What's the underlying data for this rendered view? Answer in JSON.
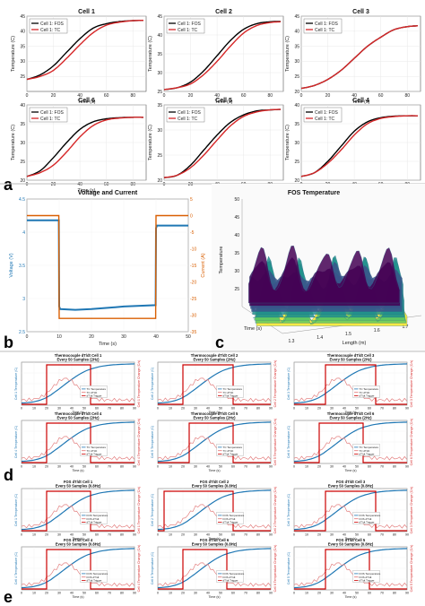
{
  "panel_letters": [
    "a",
    "b",
    "c",
    "d",
    "e"
  ],
  "chart_data": [
    {
      "panel": "a",
      "type": "line",
      "grid": true,
      "legend_position": "top-left",
      "xlabel": "Time (s)",
      "ylabel": "Temperature (C)",
      "xlim": [
        0,
        90
      ],
      "xticks": [
        0,
        20,
        40,
        60,
        80
      ],
      "subplots": [
        {
          "title": "Cell 1",
          "ylim": [
            20,
            45
          ],
          "yticks": [
            25,
            30,
            35,
            40,
            45
          ],
          "series": [
            {
              "name": "Cell 1: FOS",
              "color": "#000000",
              "x": [
                0,
                10,
                20,
                30,
                40,
                50,
                60,
                70,
                80,
                88
              ],
              "y": [
                24,
                25.5,
                28.5,
                33,
                37.5,
                41,
                42.5,
                43.2,
                43.5,
                43.6
              ]
            },
            {
              "name": "Cell 1: TC",
              "color": "#d62728",
              "x": [
                0,
                10,
                20,
                30,
                40,
                50,
                60,
                70,
                80,
                88
              ],
              "y": [
                24,
                25,
                27,
                31,
                35.5,
                39.5,
                42,
                43,
                43.5,
                43.6
              ]
            }
          ]
        },
        {
          "title": "Cell 2",
          "ylim": [
            25,
            45
          ],
          "yticks": [
            25,
            30,
            35,
            40,
            45
          ],
          "series": [
            {
              "name": "Cell 1: FOS",
              "color": "#000000",
              "x": [
                0,
                10,
                20,
                30,
                40,
                50,
                60,
                70,
                80,
                88
              ],
              "y": [
                25.5,
                26,
                27.5,
                30.5,
                34.5,
                38.5,
                41.5,
                43,
                43.5,
                43.6
              ]
            },
            {
              "name": "Cell 1: TC",
              "color": "#d62728",
              "x": [
                0,
                10,
                20,
                30,
                40,
                50,
                60,
                70,
                80,
                88
              ],
              "y": [
                25.5,
                26,
                27,
                29.5,
                33,
                37,
                40.5,
                42.5,
                43.3,
                43.5
              ]
            }
          ]
        },
        {
          "title": "Cell 3",
          "ylim": [
            20,
            45
          ],
          "yticks": [
            20,
            25,
            30,
            35,
            40,
            45
          ],
          "series": [
            {
              "name": "Cell 1: FOS",
              "color": "#000000",
              "x": [
                0,
                10,
                20,
                30,
                40,
                50,
                60,
                70,
                80,
                88
              ],
              "y": [
                21,
                22,
                24,
                27,
                31,
                35,
                38,
                40.5,
                41.5,
                41.8
              ]
            },
            {
              "name": "Cell 1: TC",
              "color": "#d62728",
              "x": [
                0,
                10,
                20,
                30,
                40,
                50,
                60,
                70,
                80,
                88
              ],
              "y": [
                21,
                22,
                24,
                27,
                31,
                35,
                38,
                40.5,
                41.5,
                41.8
              ]
            }
          ]
        },
        {
          "title": "Cell 6",
          "ylim": [
            20,
            40
          ],
          "yticks": [
            20,
            25,
            30,
            35,
            40
          ],
          "series": [
            {
              "name": "Cell 1: FOS",
              "color": "#000000",
              "x": [
                0,
                10,
                20,
                30,
                40,
                50,
                60,
                70,
                80,
                88
              ],
              "y": [
                21,
                22.5,
                26,
                30,
                33.5,
                35.5,
                36.3,
                36.6,
                36.7,
                36.7
              ]
            },
            {
              "name": "Cell 1: TC",
              "color": "#d62728",
              "x": [
                0,
                10,
                20,
                30,
                40,
                50,
                60,
                70,
                80,
                88
              ],
              "y": [
                21,
                22,
                24,
                27.5,
                31.5,
                34.5,
                36,
                36.5,
                36.7,
                36.7
              ]
            }
          ]
        },
        {
          "title": "Cell 5",
          "ylim": [
            20,
            35
          ],
          "yticks": [
            20,
            25,
            30,
            35
          ],
          "series": [
            {
              "name": "Cell 1: FOS",
              "color": "#000000",
              "x": [
                0,
                10,
                20,
                30,
                40,
                50,
                60,
                70,
                80,
                88
              ],
              "y": [
                20.5,
                21,
                23,
                26,
                29,
                31.5,
                33,
                33.8,
                34,
                34.1
              ]
            },
            {
              "name": "Cell 1: TC",
              "color": "#d62728",
              "x": [
                0,
                10,
                20,
                30,
                40,
                50,
                60,
                70,
                80,
                88
              ],
              "y": [
                20.5,
                21,
                22.5,
                25,
                28,
                30.8,
                32.7,
                33.6,
                34,
                34.1
              ]
            }
          ]
        },
        {
          "title": "Cell 4",
          "ylim": [
            20,
            40
          ],
          "yticks": [
            20,
            25,
            30,
            35,
            40
          ],
          "series": [
            {
              "name": "Cell 1: FOS",
              "color": "#000000",
              "x": [
                0,
                10,
                20,
                30,
                40,
                50,
                60,
                70,
                80,
                88
              ],
              "y": [
                21,
                22,
                25,
                29,
                33,
                35.5,
                36.6,
                37,
                37.1,
                37.1
              ]
            },
            {
              "name": "Cell 1: TC",
              "color": "#d62728",
              "x": [
                0,
                10,
                20,
                30,
                40,
                50,
                60,
                70,
                80,
                88
              ],
              "y": [
                21,
                22,
                24.5,
                28,
                32,
                35,
                36.4,
                36.9,
                37.1,
                37.1
              ]
            }
          ]
        }
      ]
    },
    {
      "panel": "b",
      "type": "line",
      "title": "Voltage and Current",
      "xlabel": "Time (s)",
      "ylabel_left": "Voltage (V)",
      "ylabel_right": "Current (A)",
      "xlim": [
        0,
        50
      ],
      "xticks": [
        0,
        10,
        20,
        30,
        40,
        50
      ],
      "ylim_left": [
        2.5,
        4.5
      ],
      "yticks_left": [
        2.5,
        3,
        3.5,
        4,
        4.5
      ],
      "ylim_right": [
        -35,
        5
      ],
      "yticks_right": [
        -35,
        -30,
        -25,
        -20,
        -15,
        -10,
        -5,
        0,
        5
      ],
      "series": [
        {
          "axis": "left",
          "color": "#1f77b4",
          "x": [
            0,
            9.9,
            10,
            10.3,
            15,
            20,
            25,
            30,
            35,
            39.9,
            40,
            40.3,
            45,
            50
          ],
          "y": [
            4.18,
            4.18,
            2.88,
            2.84,
            2.83,
            2.84,
            2.86,
            2.88,
            2.89,
            2.9,
            4.06,
            4.1,
            4.1,
            4.1
          ]
        },
        {
          "axis": "right",
          "color": "#d95f02",
          "x": [
            0,
            9.9,
            10,
            39.9,
            40,
            50
          ],
          "y": [
            0,
            0,
            -31,
            -31,
            0,
            0
          ]
        }
      ]
    },
    {
      "panel": "c",
      "type": "heatmap",
      "title": "FOS Temperature",
      "xlabel": "Length (m)",
      "ylabel": "Time (s)",
      "zlabel": "Temperature",
      "xticks": [
        1.3,
        1.4,
        1.5,
        1.6,
        1.7
      ],
      "zticks": [
        25,
        30,
        35,
        40,
        45,
        50
      ],
      "zlim": [
        20,
        50
      ],
      "peak_lengths_m": [
        1.3,
        1.4,
        1.52,
        1.62,
        1.72
      ]
    },
    {
      "panel": "d",
      "type": "line",
      "xlabel": "Time (s)",
      "xticks": [
        0,
        10,
        20,
        30,
        40,
        50,
        60,
        70,
        80,
        90
      ],
      "legend": [
        "TC Temperature",
        "TC dT/dt",
        "dT/dt Trigger"
      ],
      "subplots": [
        {
          "title": "Thermocouple dT/dt Cell 1",
          "subtitle": "Every 50 Samples (2Hz)",
          "ylabel": "Cell 1 Temperature (C)",
          "ylabel_right": "Cell 1 Temperature Change (C/s)",
          "trigger": [
            20,
            55
          ]
        },
        {
          "title": "Thermocouple dT/dt Cell 2",
          "subtitle": "Every 50 Samples (2Hz)",
          "ylabel": "Cell 2 Temperature (C)",
          "ylabel_right": "Cell 2 Temperature Change (C/s)",
          "trigger": [
            20,
            60
          ]
        },
        {
          "title": "Thermocouple dT/dt Cell 3",
          "subtitle": "Every 50 Samples (2Hz)",
          "ylabel": "Cell 3 Temperature (C)",
          "ylabel_right": "Cell 3 Temperature Change (C/s)",
          "trigger": [
            25,
            65
          ]
        },
        {
          "title": "Thermocouple dT/dt Cell 4",
          "subtitle": "Every 50 Samples (2Hz)",
          "ylabel": "Cell 4 Temperature (C)",
          "ylabel_right": "Cell 4 Temperature Change (C/s)",
          "trigger": [
            20,
            55
          ]
        },
        {
          "title": "Thermocouple dT/dt Cell 5",
          "subtitle": "Every 50 Samples (2Hz)",
          "ylabel": "Cell 5 Temperature (C)",
          "ylabel_right": "Cell 5 Temperature Change (C/s)",
          "trigger": [
            25,
            60
          ]
        },
        {
          "title": "Thermocouple dT/dt Cell 6",
          "subtitle": "Every 50 Samples (2Hz)",
          "ylabel": "Cell 6 Temperature (C)",
          "ylabel_right": "Cell 6 Temperature Change (C/s)",
          "trigger": [
            20,
            55
          ]
        }
      ]
    },
    {
      "panel": "e",
      "type": "line",
      "xlabel": "Time (s)",
      "xticks": [
        0,
        10,
        20,
        30,
        40,
        50,
        60,
        70,
        80,
        90
      ],
      "legend": [
        "FOS Temperature",
        "FOS dT/dt",
        "dT/dt Trigger"
      ],
      "subplots": [
        {
          "title": "FOS dT/dt Cell 1",
          "subtitle": "Every 50 Samples (0.8Hz)",
          "ylabel": "Cell 1 Temperature (C)",
          "ylabel_right": "Cell 1 Temperature Change (C/s)",
          "trigger": [
            20,
            55
          ]
        },
        {
          "title": "FOS dT/dt Cell 2",
          "subtitle": "Every 50 Samples (0.8Hz)",
          "ylabel": "Cell 2 Temperature (C)",
          "ylabel_right": "Cell 2 Temperature Change (C/s)",
          "trigger": [
            5,
            60
          ]
        },
        {
          "title": "FOS dT/dt Cell 3",
          "subtitle": "Every 50 Samples (0.8Hz)",
          "ylabel": "Cell 3 Temperature (C)",
          "ylabel_right": "Cell 3 Temperature Change (C/s)",
          "trigger": [
            25,
            65
          ]
        },
        {
          "title": "FOS dT/dt Cell 4",
          "subtitle": "Every 50 Samples (0.8Hz)",
          "ylabel": "Cell 4 Temperature (C)",
          "ylabel_right": "Cell 4 Temperature Change (C/s)",
          "trigger": [
            20,
            55
          ]
        },
        {
          "title": "FOS dT/dt Cell 6",
          "subtitle": "Every 50 Samples (0.8Hz)",
          "ylabel": "Cell 6 Temperature (C)",
          "ylabel_right": "Cell 6 Temperature Change (C/s)",
          "trigger": [
            20,
            55
          ]
        },
        {
          "title": "FOS dT/dt Cell 5",
          "subtitle": "Every 50 Samples (0.8Hz)",
          "ylabel": "Cell 5 Temperature (C)",
          "ylabel_right": "Cell 5 Temperature Change (C/s)",
          "trigger": [
            25,
            60
          ]
        }
      ]
    }
  ]
}
